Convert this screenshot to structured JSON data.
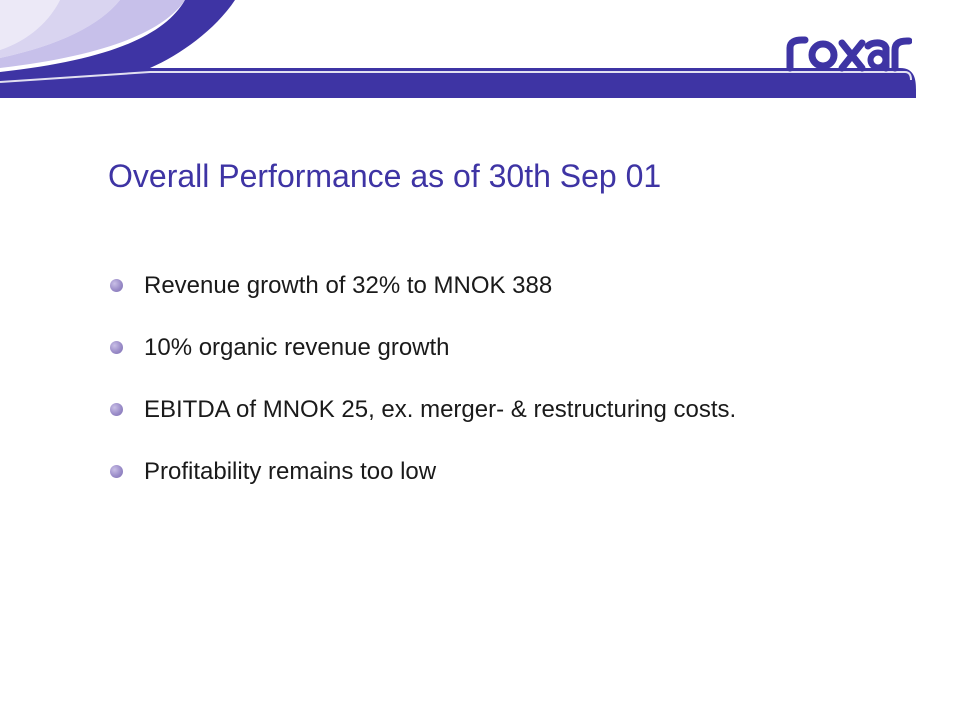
{
  "brand": {
    "logo_text": "roxar",
    "primary_color": "#3e34a4",
    "bullet_color": "#9a8cc8"
  },
  "slide": {
    "title": "Overall Performance as of 30th Sep 01",
    "bullets": [
      {
        "text": "Revenue growth of 32% to MNOK 388"
      },
      {
        "text": "10% organic revenue growth"
      },
      {
        "text": "EBITDA of MNOK 25, ex. merger- & restructuring costs."
      },
      {
        "text": "Profitability remains too low"
      }
    ]
  }
}
